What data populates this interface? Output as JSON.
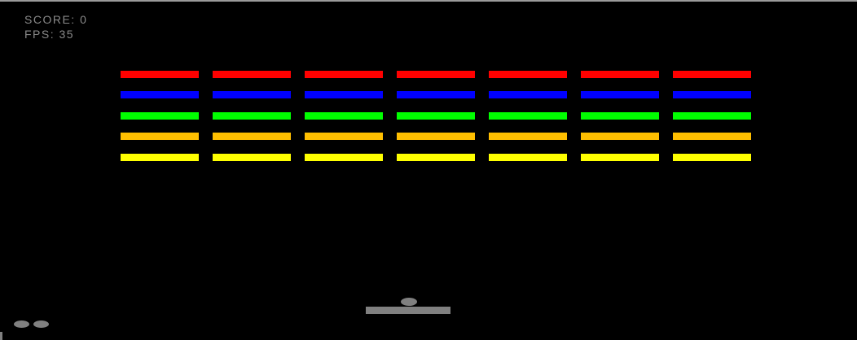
{
  "hud": {
    "score_label": "SCORE: 0",
    "fps_label": "FPS: 35",
    "score": 0,
    "fps": 35
  },
  "bricks": {
    "columns": 7,
    "rows": [
      {
        "color": "#ff0000"
      },
      {
        "color": "#0000ff"
      },
      {
        "color": "#00ff00"
      },
      {
        "color": "#ffbf00"
      },
      {
        "color": "#ffff00"
      }
    ]
  },
  "lives": 2,
  "colors": {
    "background": "#000000",
    "paddle": "#808080",
    "ball": "#808080",
    "text": "#8a8a8a"
  }
}
